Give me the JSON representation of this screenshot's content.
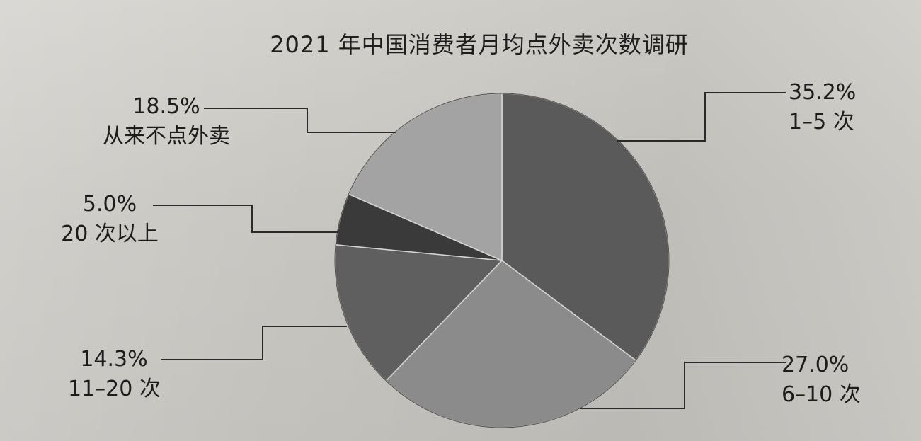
{
  "chart_data": {
    "type": "pie",
    "title": "2021 年中国消费者月均点外卖次数调研",
    "slices": [
      {
        "label": "1–5 次",
        "value": 35.2,
        "value_text": "35.2%",
        "color": "#5a5a5a"
      },
      {
        "label": "6–10 次",
        "value": 27.0,
        "value_text": "27.0%",
        "color": "#8b8b8b"
      },
      {
        "label": "11–20 次",
        "value": 14.3,
        "value_text": "14.3%",
        "color": "#5f5f5f"
      },
      {
        "label": "20 次以上",
        "value": 5.0,
        "value_text": "5.0%",
        "color": "#3a3a3a"
      },
      {
        "label": "从来不点外卖",
        "value": 18.5,
        "value_text": "18.5%",
        "color": "#a3a3a3"
      }
    ],
    "start": "12 o'clock",
    "direction": "clockwise"
  }
}
